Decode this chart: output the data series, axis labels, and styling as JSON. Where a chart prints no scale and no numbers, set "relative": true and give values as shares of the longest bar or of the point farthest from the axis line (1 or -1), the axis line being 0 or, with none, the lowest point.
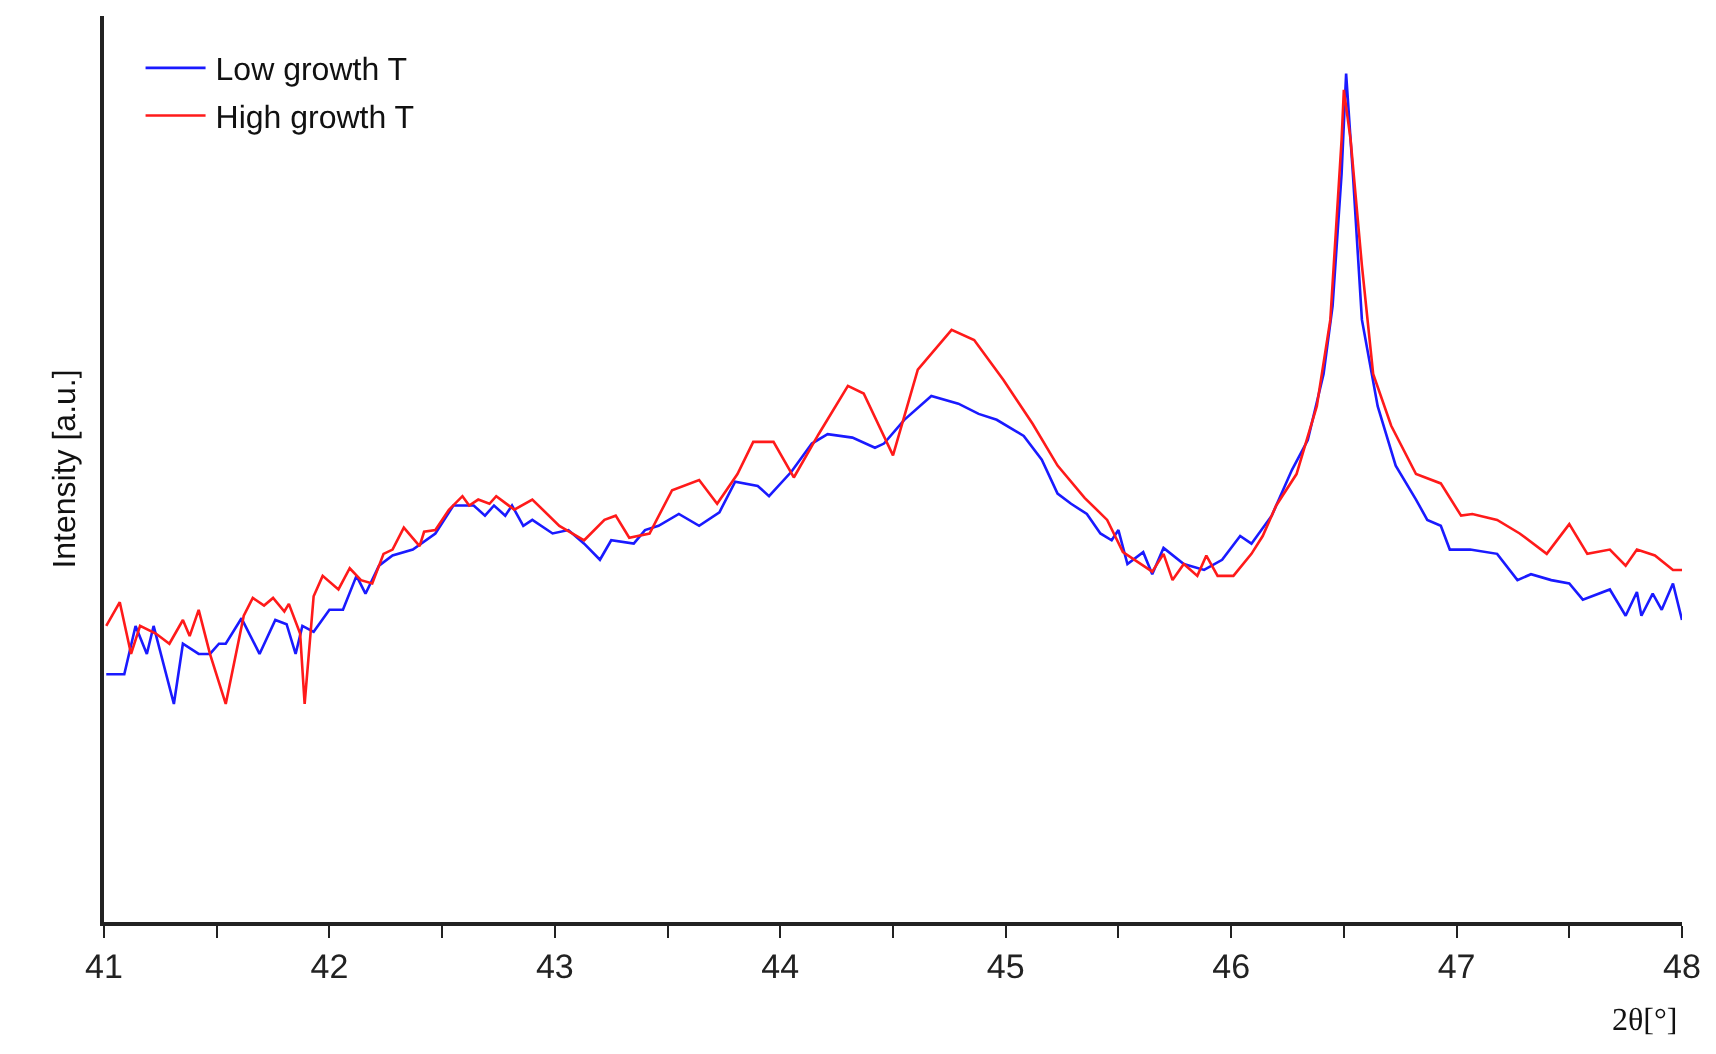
{
  "chart_data": {
    "type": "line",
    "relative": true,
    "xlabel": "2θ[°]",
    "ylabel": "Intensity [a.u.]",
    "xlim": [
      41,
      48
    ],
    "xticks": [
      41,
      {
        "value": 41.5,
        "label": null
      },
      42,
      {
        "value": 42.5,
        "label": null
      },
      43,
      {
        "value": 43.5,
        "label": null
      },
      44,
      {
        "value": 44.5,
        "label": null
      },
      45,
      {
        "value": 45.5,
        "label": null
      },
      46,
      {
        "value": 46.5,
        "label": null
      },
      47,
      {
        "value": 47.5,
        "label": null
      },
      48
    ],
    "legend": "top left",
    "marker": "none",
    "line_style": "solid",
    "series": [
      {
        "name": "Low growth T",
        "color": "#1a1aff",
        "x": [
          41.01,
          41.09,
          41.14,
          41.19,
          41.22,
          41.31,
          41.35,
          41.42,
          41.47,
          41.51,
          41.54,
          41.61,
          41.69,
          41.76,
          41.81,
          41.85,
          41.88,
          41.93,
          42.0,
          42.06,
          42.12,
          42.16,
          42.22,
          42.28,
          42.37,
          42.47,
          42.55,
          42.64,
          42.69,
          42.73,
          42.78,
          42.81,
          42.86,
          42.9,
          42.99,
          43.06,
          43.13,
          43.2,
          43.25,
          43.35,
          43.4,
          43.46,
          43.55,
          43.64,
          43.73,
          43.8,
          43.9,
          43.95,
          44.05,
          44.14,
          44.21,
          44.32,
          44.42,
          44.46,
          44.55,
          44.67,
          44.79,
          44.88,
          44.96,
          45.08,
          45.16,
          45.23,
          45.29,
          45.36,
          45.42,
          45.47,
          45.5,
          45.54,
          45.61,
          45.65,
          45.7,
          45.79,
          45.88,
          45.96,
          46.04,
          46.09,
          46.18,
          46.27,
          46.34,
          46.41,
          46.45,
          46.49,
          46.51,
          46.54,
          46.58,
          46.65,
          46.73,
          46.82,
          46.87,
          46.93,
          46.97,
          47.06,
          47.18,
          47.27,
          47.33,
          47.42,
          47.5,
          47.56,
          47.68,
          47.75,
          47.8,
          47.82,
          47.87,
          47.91,
          47.96,
          48.0
        ],
        "values": [
          0.292,
          0.292,
          0.349,
          0.316,
          0.349,
          0.257,
          0.328,
          0.316,
          0.316,
          0.328,
          0.328,
          0.358,
          0.316,
          0.356,
          0.351,
          0.316,
          0.349,
          0.342,
          0.368,
          0.368,
          0.408,
          0.387,
          0.42,
          0.432,
          0.439,
          0.458,
          0.491,
          0.491,
          0.479,
          0.491,
          0.479,
          0.491,
          0.467,
          0.474,
          0.458,
          0.462,
          0.446,
          0.427,
          0.45,
          0.446,
          0.462,
          0.467,
          0.481,
          0.467,
          0.483,
          0.519,
          0.514,
          0.502,
          0.531,
          0.564,
          0.575,
          0.571,
          0.559,
          0.564,
          0.592,
          0.62,
          0.611,
          0.599,
          0.592,
          0.573,
          0.545,
          0.505,
          0.493,
          0.481,
          0.458,
          0.45,
          0.462,
          0.422,
          0.436,
          0.41,
          0.441,
          0.422,
          0.415,
          0.427,
          0.455,
          0.446,
          0.479,
          0.533,
          0.568,
          0.646,
          0.726,
          0.882,
          1.0,
          0.882,
          0.71,
          0.608,
          0.538,
          0.498,
          0.474,
          0.467,
          0.439,
          0.439,
          0.434,
          0.403,
          0.41,
          0.403,
          0.399,
          0.38,
          0.392,
          0.361,
          0.389,
          0.361,
          0.387,
          0.368,
          0.399,
          0.356
        ]
      },
      {
        "name": "High growth T",
        "color": "#ff1a1a",
        "x": [
          41.01,
          41.07,
          41.12,
          41.16,
          41.23,
          41.29,
          41.35,
          41.38,
          41.42,
          41.47,
          41.54,
          41.62,
          41.66,
          41.71,
          41.75,
          41.8,
          41.82,
          41.87,
          41.89,
          41.93,
          41.97,
          42.04,
          42.09,
          42.14,
          42.19,
          42.24,
          42.28,
          42.33,
          42.4,
          42.42,
          42.47,
          42.53,
          42.59,
          42.62,
          42.66,
          42.71,
          42.74,
          42.82,
          42.9,
          43.02,
          43.13,
          43.22,
          43.27,
          43.33,
          43.42,
          43.52,
          43.64,
          43.72,
          43.81,
          43.88,
          43.97,
          44.06,
          44.17,
          44.3,
          44.37,
          44.5,
          44.61,
          44.76,
          44.86,
          44.99,
          45.12,
          45.23,
          45.35,
          45.45,
          45.52,
          45.65,
          45.7,
          45.74,
          45.79,
          45.85,
          45.89,
          45.94,
          46.01,
          46.09,
          46.14,
          46.2,
          46.29,
          46.38,
          46.44,
          46.49,
          46.5,
          46.53,
          46.58,
          46.63,
          46.71,
          46.82,
          46.93,
          47.02,
          47.07,
          47.18,
          47.28,
          47.4,
          47.5,
          47.58,
          47.68,
          47.75,
          47.8,
          47.88,
          47.96,
          48.0
        ],
        "values": [
          0.349,
          0.377,
          0.316,
          0.349,
          0.34,
          0.328,
          0.356,
          0.337,
          0.368,
          0.316,
          0.257,
          0.361,
          0.382,
          0.373,
          0.382,
          0.366,
          0.375,
          0.34,
          0.257,
          0.384,
          0.408,
          0.392,
          0.417,
          0.403,
          0.399,
          0.434,
          0.439,
          0.465,
          0.443,
          0.46,
          0.462,
          0.486,
          0.502,
          0.491,
          0.498,
          0.493,
          0.502,
          0.486,
          0.498,
          0.467,
          0.45,
          0.474,
          0.479,
          0.453,
          0.458,
          0.509,
          0.521,
          0.493,
          0.528,
          0.566,
          0.566,
          0.524,
          0.575,
          0.632,
          0.623,
          0.55,
          0.651,
          0.698,
          0.686,
          0.639,
          0.587,
          0.538,
          0.5,
          0.474,
          0.436,
          0.413,
          0.434,
          0.403,
          0.422,
          0.408,
          0.432,
          0.408,
          0.408,
          0.434,
          0.455,
          0.491,
          0.528,
          0.608,
          0.71,
          0.922,
          0.981,
          0.922,
          0.774,
          0.646,
          0.585,
          0.528,
          0.517,
          0.479,
          0.481,
          0.474,
          0.458,
          0.434,
          0.469,
          0.434,
          0.439,
          0.42,
          0.439,
          0.432,
          0.415,
          0.415
        ]
      }
    ]
  }
}
